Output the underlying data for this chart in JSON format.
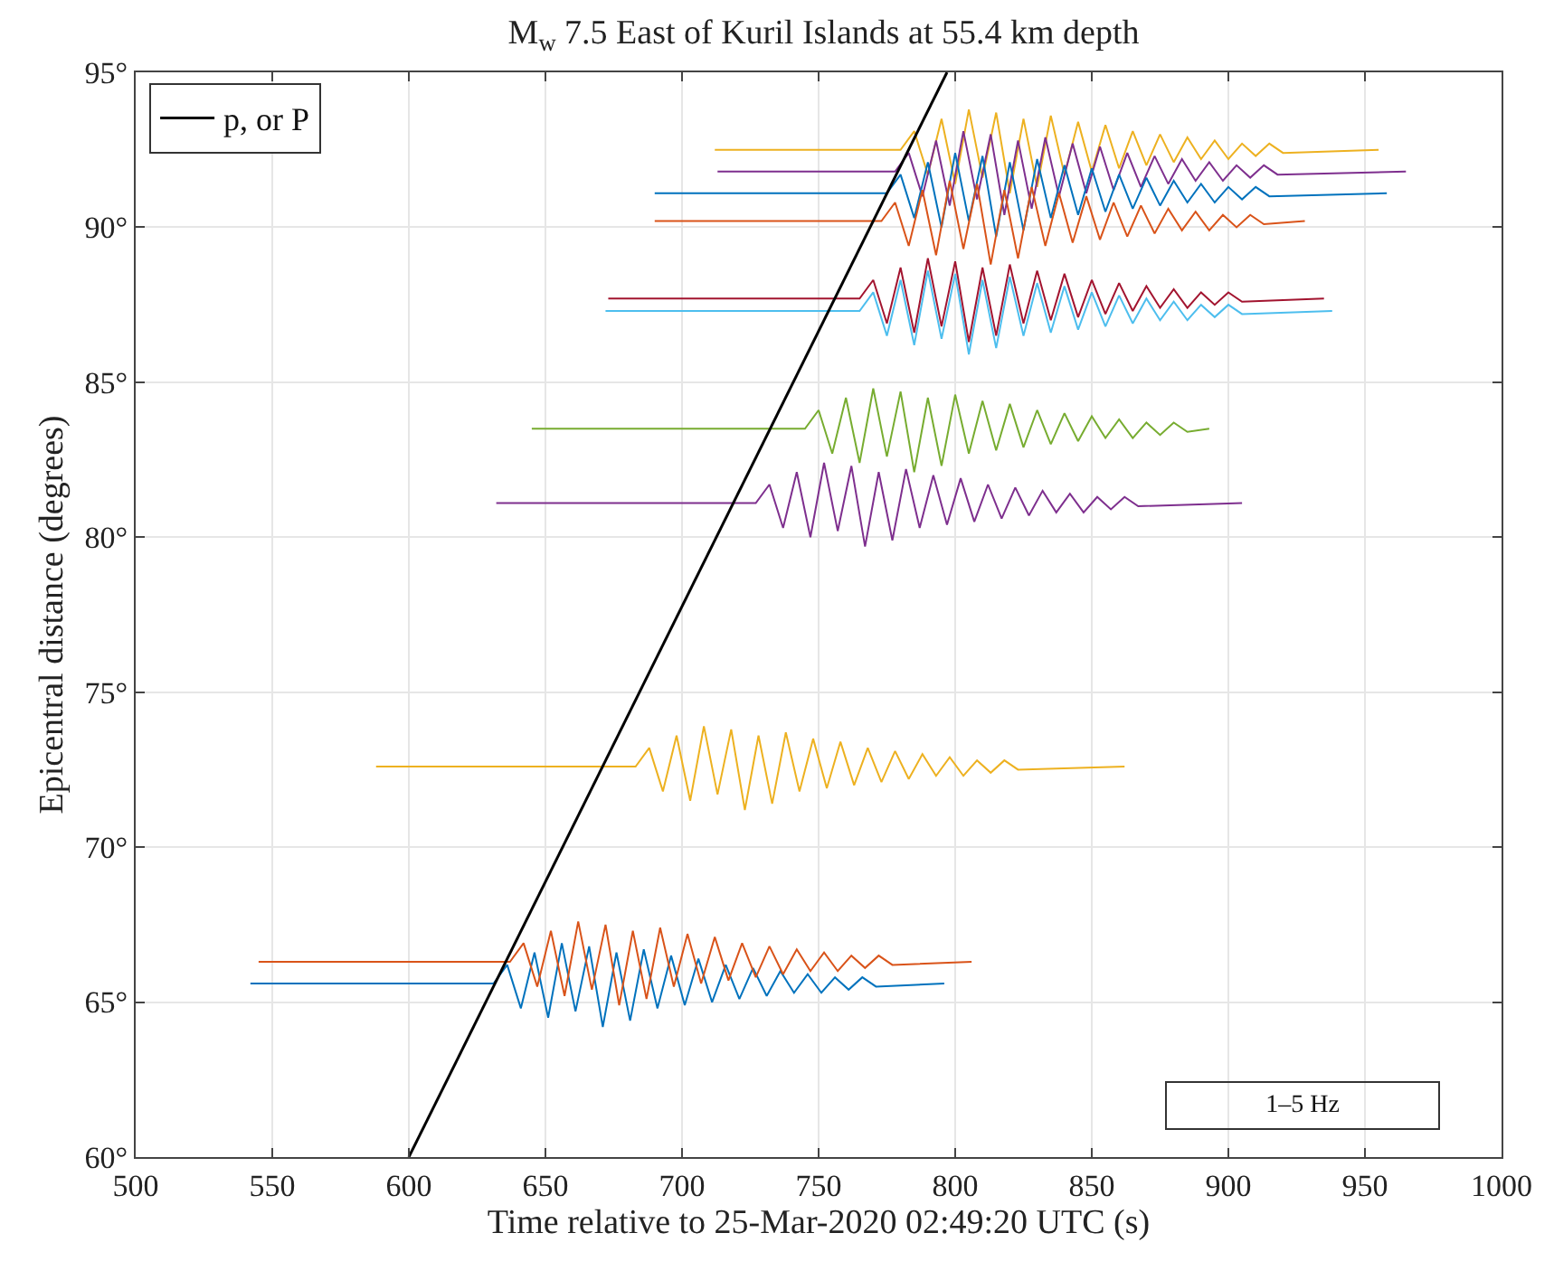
{
  "chart_data": {
    "type": "line",
    "title": "M$_{w}$ 7.5 East of Kuril Islands at 55.4 km depth",
    "xlabel": "Time relative to 25-Mar-2020 02:49:20 UTC (s)",
    "ylabel": "Epicentral distance (degrees)",
    "xlim": [
      500,
      1000
    ],
    "xticks": [
      500,
      550,
      600,
      650,
      700,
      750,
      800,
      850,
      900,
      950,
      1000
    ],
    "ylim": [
      60,
      95
    ],
    "yticks": [
      {
        "value": 60,
        "label": "60°"
      },
      {
        "value": 65,
        "label": "65°"
      },
      {
        "value": 70,
        "label": "70°"
      },
      {
        "value": 75,
        "label": "75°"
      },
      {
        "value": 80,
        "label": "80°"
      },
      {
        "value": 85,
        "label": "85°"
      },
      {
        "value": 90,
        "label": "90°"
      },
      {
        "value": 95,
        "label": "95°"
      }
    ],
    "grid": true,
    "legend": "top left",
    "marker": "none",
    "line_style": "solid",
    "annotations": [
      "1–5 Hz"
    ],
    "series": [
      {
        "color": "#EDB120",
        "x": [
          712,
          780,
          785,
          790,
          795,
          800,
          805,
          810,
          815,
          820,
          825,
          830,
          835,
          840,
          845,
          850,
          855,
          860,
          865,
          870,
          875,
          880,
          885,
          890,
          895,
          900,
          905,
          910,
          915,
          920,
          955
        ],
        "values": [
          92.5,
          92.5,
          93.1,
          91.7,
          93.5,
          91.4,
          93.8,
          91.6,
          93.7,
          91.1,
          93.5,
          91.3,
          93.6,
          91.7,
          93.4,
          91.8,
          93.3,
          91.9,
          93.1,
          92.0,
          93.0,
          92.1,
          92.9,
          92.2,
          92.8,
          92.2,
          92.7,
          92.3,
          92.7,
          92.4,
          92.5
        ]
      },
      {
        "color": "#7E2F8E",
        "x": [
          713,
          778,
          783,
          788,
          793,
          798,
          803,
          808,
          813,
          818,
          823,
          828,
          833,
          838,
          843,
          848,
          853,
          858,
          863,
          868,
          873,
          878,
          883,
          888,
          893,
          898,
          903,
          908,
          913,
          918,
          965
        ],
        "values": [
          91.8,
          91.8,
          92.4,
          91.0,
          92.8,
          90.7,
          93.1,
          90.9,
          93.0,
          90.4,
          92.8,
          90.6,
          92.9,
          91.0,
          92.7,
          91.1,
          92.6,
          91.2,
          92.4,
          91.3,
          92.3,
          91.4,
          92.2,
          91.5,
          92.1,
          91.5,
          92.0,
          91.6,
          92.0,
          91.7,
          91.8
        ]
      },
      {
        "color": "#0072BD",
        "x": [
          690,
          775,
          780,
          785,
          790,
          795,
          800,
          805,
          810,
          815,
          820,
          825,
          830,
          835,
          840,
          845,
          850,
          855,
          860,
          865,
          870,
          875,
          880,
          885,
          890,
          895,
          900,
          905,
          910,
          915,
          958
        ],
        "values": [
          91.1,
          91.1,
          91.7,
          90.3,
          92.1,
          90.0,
          92.4,
          90.2,
          92.3,
          89.7,
          92.1,
          89.9,
          92.2,
          90.3,
          92.0,
          90.4,
          91.9,
          90.5,
          91.7,
          90.6,
          91.6,
          90.7,
          91.5,
          90.8,
          91.4,
          90.8,
          91.3,
          90.9,
          91.3,
          91.0,
          91.1
        ]
      },
      {
        "color": "#D95319",
        "x": [
          690,
          773,
          778,
          783,
          788,
          793,
          798,
          803,
          808,
          813,
          818,
          823,
          828,
          833,
          838,
          843,
          848,
          853,
          858,
          863,
          868,
          873,
          878,
          883,
          888,
          893,
          898,
          903,
          908,
          913,
          928
        ],
        "values": [
          90.2,
          90.2,
          90.8,
          89.4,
          91.2,
          89.1,
          91.5,
          89.3,
          91.4,
          88.8,
          91.2,
          89.0,
          91.3,
          89.4,
          91.1,
          89.5,
          91.0,
          89.6,
          90.8,
          89.7,
          90.7,
          89.8,
          90.6,
          89.9,
          90.5,
          89.9,
          90.4,
          90.0,
          90.4,
          90.1,
          90.2
        ]
      },
      {
        "color": "#4DBEEE",
        "x": [
          672,
          765,
          770,
          775,
          780,
          785,
          790,
          795,
          800,
          805,
          810,
          815,
          820,
          825,
          830,
          835,
          840,
          845,
          850,
          855,
          860,
          865,
          870,
          875,
          880,
          885,
          890,
          895,
          900,
          905,
          938
        ],
        "values": [
          87.3,
          87.3,
          87.9,
          86.5,
          88.3,
          86.2,
          88.6,
          86.4,
          88.5,
          85.9,
          88.3,
          86.1,
          88.4,
          86.5,
          88.2,
          86.6,
          88.1,
          86.7,
          87.9,
          86.8,
          87.8,
          86.9,
          87.7,
          87.0,
          87.6,
          87.0,
          87.5,
          87.1,
          87.5,
          87.2,
          87.3
        ]
      },
      {
        "color": "#A2142F",
        "x": [
          673,
          765,
          770,
          775,
          780,
          785,
          790,
          795,
          800,
          805,
          810,
          815,
          820,
          825,
          830,
          835,
          840,
          845,
          850,
          855,
          860,
          865,
          870,
          875,
          880,
          885,
          890,
          895,
          900,
          905,
          935
        ],
        "values": [
          87.7,
          87.7,
          88.3,
          86.9,
          88.7,
          86.6,
          89.0,
          86.8,
          88.9,
          86.3,
          88.7,
          86.5,
          88.8,
          86.9,
          88.6,
          87.0,
          88.5,
          87.1,
          88.3,
          87.2,
          88.2,
          87.3,
          88.1,
          87.4,
          88.0,
          87.4,
          87.9,
          87.5,
          87.9,
          87.6,
          87.7
        ]
      },
      {
        "color": "#77AC30",
        "x": [
          645,
          745,
          750,
          755,
          760,
          765,
          770,
          775,
          780,
          785,
          790,
          795,
          800,
          805,
          810,
          815,
          820,
          825,
          830,
          835,
          840,
          845,
          850,
          855,
          860,
          865,
          870,
          875,
          880,
          885,
          893
        ],
        "values": [
          83.5,
          83.5,
          84.1,
          82.7,
          84.5,
          82.4,
          84.8,
          82.6,
          84.7,
          82.1,
          84.5,
          82.3,
          84.6,
          82.7,
          84.4,
          82.8,
          84.3,
          82.9,
          84.1,
          83.0,
          84.0,
          83.1,
          83.9,
          83.2,
          83.8,
          83.2,
          83.7,
          83.3,
          83.7,
          83.4,
          83.5
        ]
      },
      {
        "color": "#7E2F8E",
        "x": [
          632,
          727,
          732,
          737,
          742,
          747,
          752,
          757,
          762,
          767,
          772,
          777,
          782,
          787,
          792,
          797,
          802,
          807,
          812,
          817,
          822,
          827,
          832,
          837,
          842,
          847,
          852,
          857,
          862,
          867,
          905
        ],
        "values": [
          81.1,
          81.1,
          81.7,
          80.3,
          82.1,
          80.0,
          82.4,
          80.2,
          82.3,
          79.7,
          82.1,
          79.9,
          82.2,
          80.3,
          82.0,
          80.4,
          81.9,
          80.5,
          81.7,
          80.6,
          81.6,
          80.7,
          81.5,
          80.8,
          81.4,
          80.8,
          81.3,
          80.9,
          81.3,
          81.0,
          81.1
        ]
      },
      {
        "color": "#EDB120",
        "x": [
          588,
          683,
          688,
          693,
          698,
          703,
          708,
          713,
          718,
          723,
          728,
          733,
          738,
          743,
          748,
          753,
          758,
          763,
          768,
          773,
          778,
          783,
          788,
          793,
          798,
          803,
          808,
          813,
          818,
          823,
          862
        ],
        "values": [
          72.6,
          72.6,
          73.2,
          71.8,
          73.6,
          71.5,
          73.9,
          71.7,
          73.8,
          71.2,
          73.6,
          71.4,
          73.7,
          71.8,
          73.5,
          71.9,
          73.4,
          72.0,
          73.2,
          72.1,
          73.1,
          72.2,
          73.0,
          72.3,
          72.9,
          72.3,
          72.8,
          72.4,
          72.8,
          72.5,
          72.6
        ]
      },
      {
        "color": "#0072BD",
        "x": [
          542,
          631,
          636,
          641,
          646,
          651,
          656,
          661,
          666,
          671,
          676,
          681,
          686,
          691,
          696,
          701,
          706,
          711,
          716,
          721,
          726,
          731,
          736,
          741,
          746,
          751,
          756,
          761,
          766,
          771,
          796
        ],
        "values": [
          65.6,
          65.6,
          66.2,
          64.8,
          66.6,
          64.5,
          66.9,
          64.7,
          66.8,
          64.2,
          66.6,
          64.4,
          66.7,
          64.8,
          66.5,
          64.9,
          66.4,
          65.0,
          66.2,
          65.1,
          66.1,
          65.2,
          66.0,
          65.3,
          65.9,
          65.3,
          65.8,
          65.4,
          65.8,
          65.5,
          65.6
        ]
      },
      {
        "color": "#D95319",
        "x": [
          545,
          637,
          642,
          647,
          652,
          657,
          662,
          667,
          672,
          677,
          682,
          687,
          692,
          697,
          702,
          707,
          712,
          717,
          722,
          727,
          732,
          737,
          742,
          747,
          752,
          757,
          762,
          767,
          772,
          777,
          806
        ],
        "values": [
          66.3,
          66.3,
          66.9,
          65.5,
          67.3,
          65.2,
          67.6,
          65.4,
          67.5,
          64.9,
          67.3,
          65.1,
          67.4,
          65.5,
          67.2,
          65.6,
          67.1,
          65.7,
          66.9,
          65.8,
          66.8,
          65.9,
          66.7,
          66.0,
          66.6,
          66.0,
          66.5,
          66.1,
          66.5,
          66.2,
          66.3
        ]
      },
      {
        "name": "p, or P",
        "color": "#000000",
        "x": [
          600,
          797
        ],
        "values": [
          60,
          95
        ]
      }
    ]
  }
}
